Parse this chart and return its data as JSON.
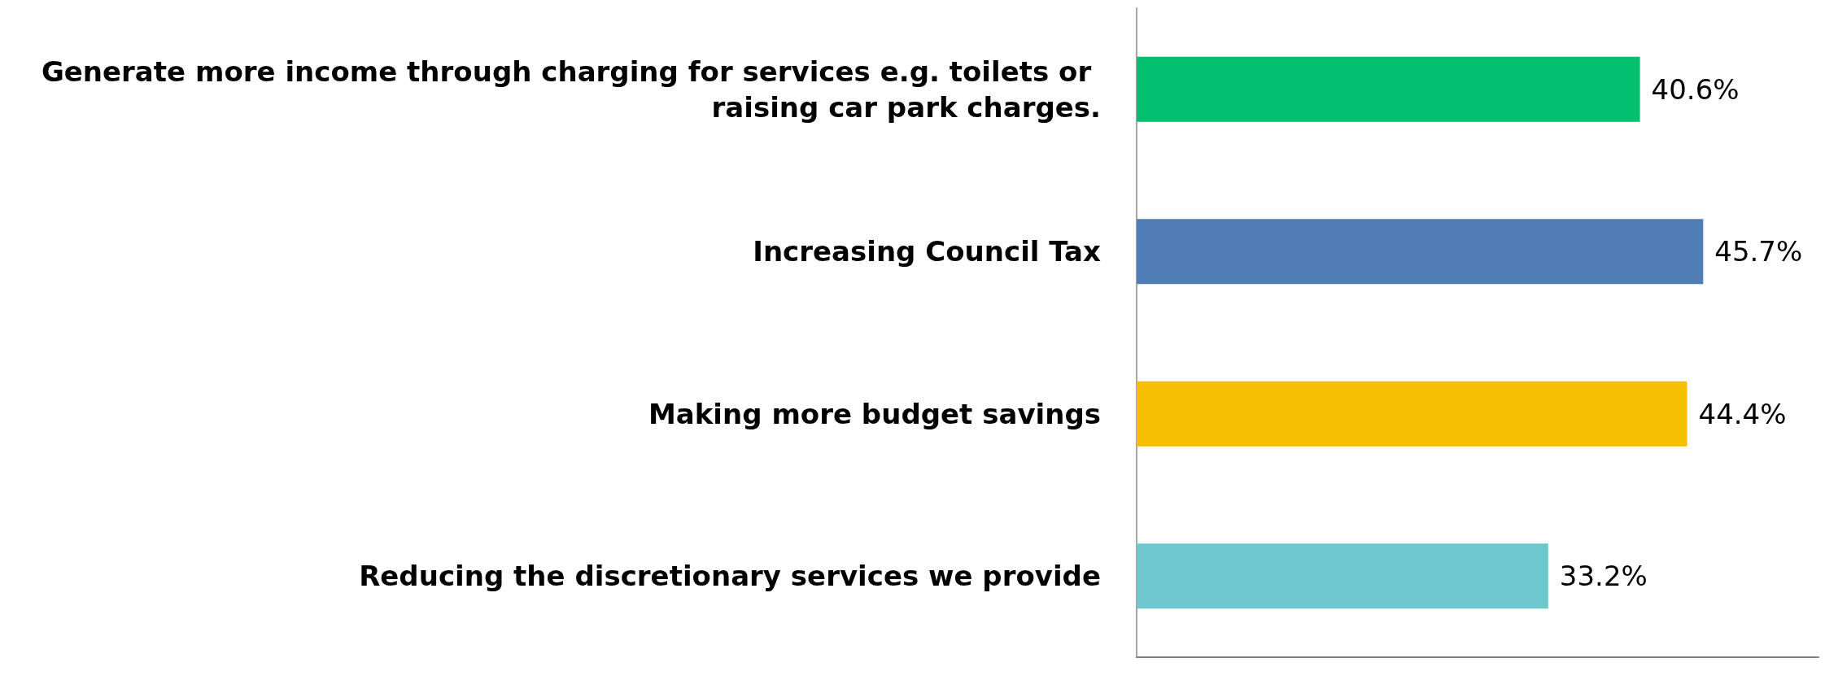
{
  "chart_data": {
    "type": "bar",
    "orientation": "horizontal",
    "categories": [
      "Generate more income through charging for services e.g. toilets or raising car park charges.",
      "Increasing Council Tax",
      "Making more budget savings",
      "Reducing the discretionary services we provide"
    ],
    "values": [
      40.6,
      45.7,
      44.4,
      33.2
    ],
    "colors": [
      "#00c070",
      "#4f7db5",
      "#f6be00",
      "#6cc8cc"
    ],
    "value_labels": [
      "40.6%",
      "45.7%",
      "44.4%",
      "33.2%"
    ],
    "xlim": [
      0,
      55
    ]
  }
}
